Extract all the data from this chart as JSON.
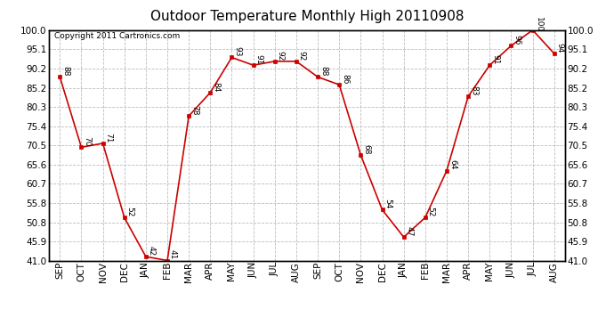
{
  "title": "Outdoor Temperature Monthly High 20110908",
  "copyright": "Copyright 2011 Cartronics.com",
  "x_labels": [
    "SEP",
    "OCT",
    "NOV",
    "DEC",
    "JAN",
    "FEB",
    "MAR",
    "APR",
    "MAY",
    "JUN",
    "JUL",
    "AUG",
    "SEP",
    "OCT",
    "NOV",
    "DEC",
    "JAN",
    "FEB",
    "MAR",
    "APR",
    "MAY",
    "JUN",
    "JUL",
    "AUG"
  ],
  "y_values": [
    88,
    70,
    71,
    52,
    42,
    41,
    78,
    84,
    93,
    91,
    92,
    92,
    88,
    86,
    68,
    54,
    47,
    52,
    64,
    83,
    91,
    96,
    100,
    94
  ],
  "y_ticks": [
    41.0,
    45.9,
    50.8,
    55.8,
    60.7,
    65.6,
    70.5,
    75.4,
    80.3,
    85.2,
    90.2,
    95.1,
    100.0
  ],
  "y_min": 41.0,
  "y_max": 100.0,
  "line_color": "#cc0000",
  "marker_color": "#cc0000",
  "bg_color": "#ffffff",
  "grid_color": "#bbbbbb",
  "title_fontsize": 11,
  "copyright_fontsize": 6.5,
  "tick_fontsize": 7.5,
  "data_label_fontsize": 6.5
}
